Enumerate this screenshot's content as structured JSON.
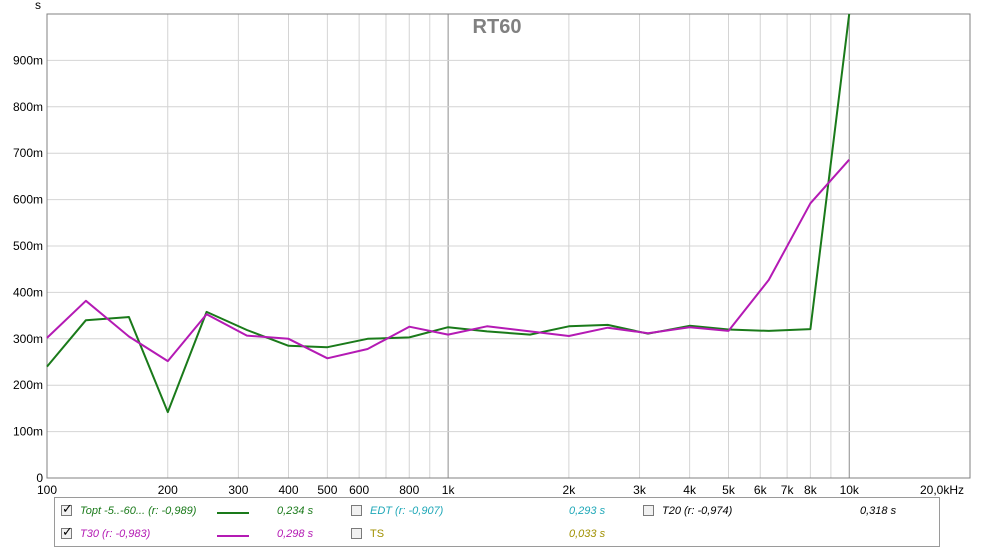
{
  "chart_data": {
    "type": "line",
    "title": "RT60",
    "ylabel": "s",
    "x_scale": "log",
    "xlim": [
      100,
      20000
    ],
    "ylim": [
      0,
      1.0
    ],
    "x_ticks": [
      {
        "v": 100,
        "label": "100"
      },
      {
        "v": 200,
        "label": "200"
      },
      {
        "v": 300,
        "label": "300"
      },
      {
        "v": 400,
        "label": "400"
      },
      {
        "v": 500,
        "label": "500"
      },
      {
        "v": 600,
        "label": "600"
      },
      {
        "v": 800,
        "label": "800"
      },
      {
        "v": 1000,
        "label": "1k"
      },
      {
        "v": 2000,
        "label": "2k"
      },
      {
        "v": 3000,
        "label": "3k"
      },
      {
        "v": 4000,
        "label": "4k"
      },
      {
        "v": 5000,
        "label": "5k"
      },
      {
        "v": 6000,
        "label": "6k"
      },
      {
        "v": 7000,
        "label": "7k"
      },
      {
        "v": 8000,
        "label": "8k"
      },
      {
        "v": 10000,
        "label": "10k"
      },
      {
        "v": 20000,
        "label": "20,0kHz"
      }
    ],
    "x_grid": [
      100,
      200,
      300,
      400,
      500,
      600,
      700,
      800,
      900,
      1000,
      2000,
      3000,
      4000,
      5000,
      6000,
      7000,
      8000,
      9000,
      10000,
      20000
    ],
    "y_ticks": [
      {
        "v": 0,
        "label": "0"
      },
      {
        "v": 0.1,
        "label": "100m"
      },
      {
        "v": 0.2,
        "label": "200m"
      },
      {
        "v": 0.3,
        "label": "300m"
      },
      {
        "v": 0.4,
        "label": "400m"
      },
      {
        "v": 0.5,
        "label": "500m"
      },
      {
        "v": 0.6,
        "label": "600m"
      },
      {
        "v": 0.7,
        "label": "700m"
      },
      {
        "v": 0.8,
        "label": "800m"
      },
      {
        "v": 0.9,
        "label": "900m"
      }
    ],
    "grid": true,
    "series": [
      {
        "name": "Topt -5..-60... (r: -0,989)",
        "color": "#1a7a1a",
        "x": [
          100,
          125,
          160,
          200,
          250,
          315,
          400,
          500,
          630,
          800,
          1000,
          1250,
          1600,
          2000,
          2500,
          3150,
          4000,
          5000,
          6300,
          8000,
          10000
        ],
        "y": [
          0.24,
          0.34,
          0.347,
          0.142,
          0.358,
          0.319,
          0.285,
          0.282,
          0.3,
          0.303,
          0.325,
          0.316,
          0.309,
          0.327,
          0.33,
          0.311,
          0.328,
          0.32,
          0.317,
          0.321,
          1.0
        ]
      },
      {
        "name": "T30 (r: -0,983)",
        "color": "#b41ab4",
        "x": [
          100,
          125,
          160,
          200,
          250,
          315,
          400,
          500,
          630,
          800,
          1000,
          1250,
          1600,
          2000,
          2500,
          3150,
          4000,
          5000,
          6300,
          8000,
          10000
        ],
        "y": [
          0.302,
          0.382,
          0.305,
          0.252,
          0.353,
          0.307,
          0.3,
          0.258,
          0.278,
          0.326,
          0.309,
          0.327,
          0.316,
          0.306,
          0.324,
          0.312,
          0.325,
          0.317,
          0.427,
          0.592,
          0.686
        ]
      }
    ]
  },
  "legend": {
    "items": [
      {
        "name": "Topt -5..-60... (r: -0,989)",
        "value": "0,234 s",
        "checked": true,
        "color": "#1a7a1a"
      },
      {
        "name": "T30 (r: -0,983)",
        "value": "0,298 s",
        "checked": true,
        "color": "#b41ab4"
      },
      {
        "name": "EDT (r: -0,907)",
        "value": "0,293 s",
        "checked": false,
        "color": "#20a8b8"
      },
      {
        "name": "TS",
        "value": "0,033 s",
        "checked": false,
        "color": "#a09000"
      },
      {
        "name": "T20 (r: -0,974)",
        "value": "0,318 s",
        "checked": false,
        "color": "#000000"
      }
    ]
  }
}
